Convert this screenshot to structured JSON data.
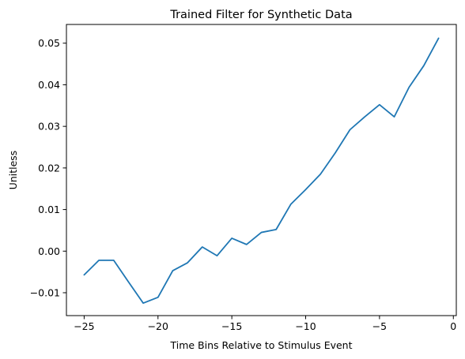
{
  "chart_data": {
    "type": "line",
    "title": "Trained Filter for Synthetic Data",
    "xlabel": "Time Bins Relative to Stimulus Event",
    "ylabel": "Unitless",
    "xlim": [
      -26.2,
      0.2
    ],
    "ylim": [
      -0.0155,
      0.0545
    ],
    "x_ticks": [
      -25,
      -20,
      -15,
      -10,
      -5,
      0
    ],
    "x_tick_labels": [
      "−25",
      "−20",
      "−15",
      "−10",
      "−5",
      "0"
    ],
    "y_ticks": [
      -0.01,
      0.0,
      0.01,
      0.02,
      0.03,
      0.04,
      0.05
    ],
    "y_tick_labels": [
      "−0.01",
      "0.00",
      "0.01",
      "0.02",
      "0.03",
      "0.04",
      "0.05"
    ],
    "grid": false,
    "color": "#1f77b4",
    "series": [
      {
        "x": [
          -25,
          -24,
          -23,
          -22,
          -21,
          -20,
          -19,
          -18,
          -17,
          -16,
          -15,
          -14,
          -13,
          -12,
          -11,
          -10,
          -9,
          -8,
          -7,
          -6,
          -5,
          -4,
          -3,
          -2,
          -1
        ],
        "values": [
          -0.0057,
          -0.0022,
          -0.0022,
          -0.0074,
          -0.0125,
          -0.0111,
          -0.0047,
          -0.0028,
          0.001,
          -0.0011,
          0.0031,
          0.0016,
          0.0045,
          0.0052,
          0.0113,
          0.0148,
          0.0185,
          0.0236,
          0.0292,
          0.0323,
          0.0352,
          0.0323,
          0.0394,
          0.0446,
          0.0512
        ]
      }
    ]
  }
}
